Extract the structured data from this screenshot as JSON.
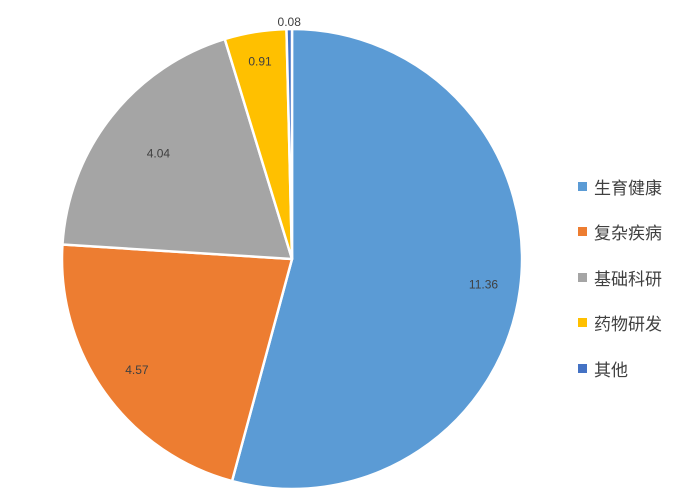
{
  "chart_data": {
    "type": "pie",
    "title": "",
    "slices": [
      {
        "name": "生育健康",
        "value": 11.36,
        "label": "11.36",
        "color": "#5B9BD5"
      },
      {
        "name": "复杂疾病",
        "value": 4.57,
        "label": "4.57",
        "color": "#ED7D31"
      },
      {
        "name": "基础科研",
        "value": 4.04,
        "label": "4.04",
        "color": "#A5A5A5"
      },
      {
        "name": "药物研发",
        "value": 0.91,
        "label": "0.91",
        "color": "#FFC000"
      },
      {
        "name": "其他",
        "value": 0.08,
        "label": "0.08",
        "color": "#4472C4"
      }
    ],
    "legend_position": "right",
    "start": "top",
    "direction": "clockwise"
  }
}
